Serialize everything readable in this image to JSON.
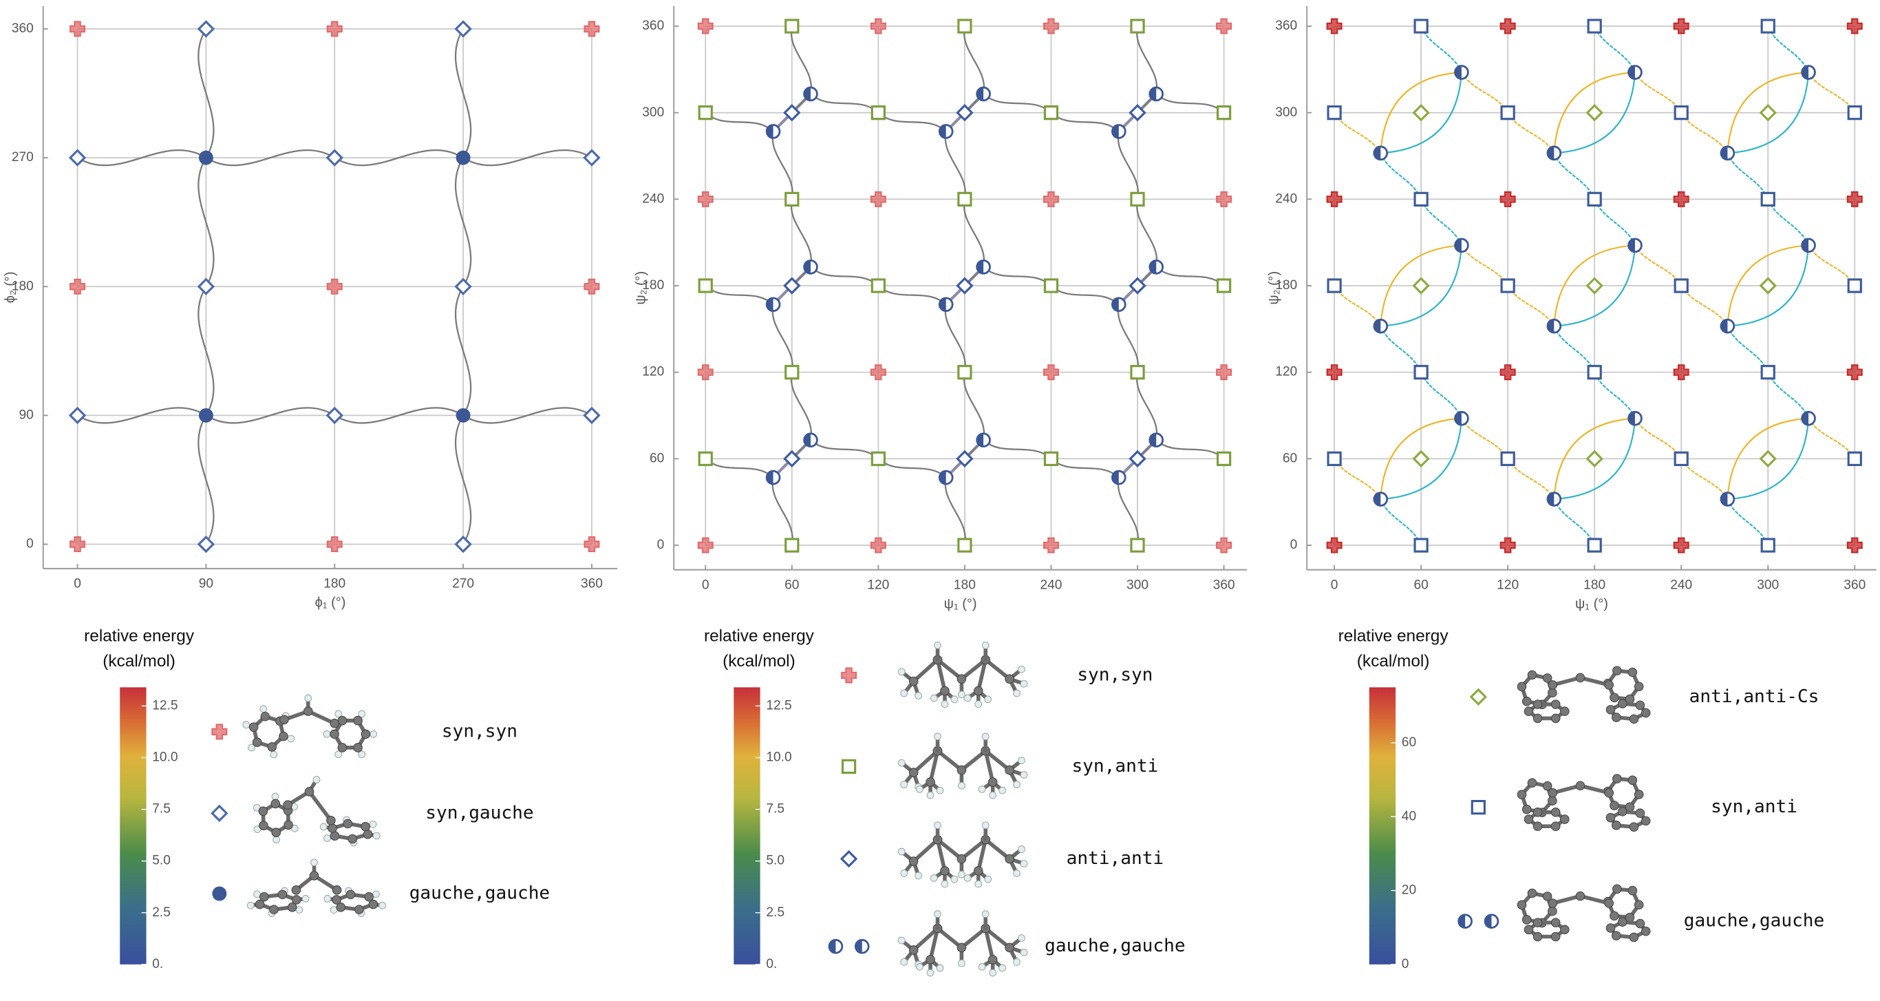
{
  "chart_data": [
    {
      "type": "scatter",
      "x_label": "ϕ₁ (°)",
      "y_label": "ϕ₂ (°)",
      "xlim": [
        -24,
        378
      ],
      "ylim": [
        -17,
        376
      ],
      "xticks": [
        0,
        90,
        180,
        270,
        360
      ],
      "yticks": [
        0,
        90,
        180,
        270,
        360
      ],
      "grid": true,
      "series": [
        {
          "name": "syn,syn",
          "color": "#e06a6a",
          "marker": "cross",
          "x": [
            0,
            180,
            360,
            0,
            180,
            360,
            0,
            180,
            360
          ],
          "y": [
            0,
            0,
            0,
            180,
            180,
            180,
            360,
            360,
            360
          ]
        },
        {
          "name": "syn,gauche",
          "color": "#4a69ad",
          "marker": "diamond",
          "x": [
            90,
            270,
            0,
            180,
            360,
            90,
            270,
            0,
            180,
            360,
            90,
            270
          ],
          "y": [
            0,
            0,
            90,
            90,
            90,
            180,
            180,
            270,
            270,
            270,
            360,
            360
          ]
        },
        {
          "name": "gauche,gauche",
          "color": "#3b5796",
          "marker": "circle",
          "x": [
            90,
            270,
            90,
            270
          ],
          "y": [
            90,
            90,
            270,
            270
          ]
        }
      ],
      "colorbar": {
        "title": [
          "relative energy",
          "(kcal/mol)"
        ],
        "lim": [
          0,
          13.4
        ],
        "ticks": [
          {
            "value": 0,
            "label": "0."
          },
          2.5,
          {
            "value": 5,
            "label": "5.0"
          },
          7.5,
          {
            "value": 10,
            "label": "10.0"
          },
          12.5
        ]
      }
    },
    {
      "type": "scatter",
      "x_label": "ψ₁ (°)",
      "y_label": "ψ₂ (°)",
      "xlim": [
        -22,
        376
      ],
      "ylim": [
        -17,
        374
      ],
      "xticks": [
        0,
        60,
        120,
        180,
        240,
        300,
        360
      ],
      "yticks": [
        0,
        60,
        120,
        180,
        240,
        300,
        360
      ],
      "grid": true,
      "series": [
        {
          "name": "syn,syn",
          "color": "#e06a6a",
          "marker": "cross",
          "x": [
            0,
            120,
            240,
            360,
            0,
            120,
            240,
            360,
            0,
            120,
            240,
            360,
            0,
            120,
            240,
            360
          ],
          "y": [
            0,
            0,
            0,
            0,
            120,
            120,
            120,
            120,
            240,
            240,
            240,
            240,
            360,
            360,
            360,
            360
          ]
        },
        {
          "name": "syn,anti",
          "color": "#7a9e3a",
          "marker": "square",
          "x": [
            60,
            180,
            300,
            60,
            180,
            300,
            60,
            180,
            300,
            60,
            180,
            300,
            0,
            120,
            240,
            360,
            0,
            120,
            240,
            360,
            0,
            120,
            240,
            360
          ],
          "y": [
            0,
            0,
            0,
            120,
            120,
            120,
            240,
            240,
            240,
            360,
            360,
            360,
            60,
            60,
            60,
            60,
            180,
            180,
            180,
            180,
            300,
            300,
            300,
            300
          ]
        },
        {
          "name": "anti,anti",
          "color": "#3b5ba5",
          "marker": "diamond",
          "x": [
            60,
            180,
            300,
            60,
            180,
            300,
            60,
            180,
            300
          ],
          "y": [
            60,
            60,
            60,
            180,
            180,
            180,
            300,
            300,
            300
          ]
        },
        {
          "name": "gauche,gauche",
          "color": "#3b5796",
          "marker": "half",
          "x": [
            47,
            73,
            167,
            193,
            287,
            313,
            47,
            73,
            167,
            193,
            287,
            313,
            47,
            73,
            167,
            193,
            287,
            313
          ],
          "y": [
            47,
            73,
            47,
            73,
            47,
            73,
            167,
            193,
            167,
            193,
            167,
            193,
            287,
            313,
            287,
            313,
            287,
            313
          ]
        }
      ],
      "colorbar": {
        "title": [
          "relative energy",
          "(kcal/mol)"
        ],
        "lim": [
          0,
          13.4
        ],
        "ticks": [
          {
            "value": 0,
            "label": "0."
          },
          2.5,
          {
            "value": 5,
            "label": "5.0"
          },
          7.5,
          {
            "value": 10,
            "label": "10.0"
          },
          12.5
        ]
      }
    },
    {
      "type": "scatter",
      "x_label": "ψ₁ (°)",
      "y_label": "ψ₂ (°)",
      "xlim": [
        -19,
        375
      ],
      "ylim": [
        -17,
        374
      ],
      "xticks": [
        0,
        60,
        120,
        180,
        240,
        300,
        360
      ],
      "yticks": [
        0,
        60,
        120,
        180,
        240,
        300,
        360
      ],
      "grid": true,
      "series": [
        {
          "color": "#c62828",
          "marker": "cross",
          "x": [
            0,
            120,
            240,
            360,
            0,
            120,
            240,
            360,
            0,
            120,
            240,
            360,
            0,
            120,
            240,
            360
          ],
          "y": [
            0,
            0,
            0,
            0,
            120,
            120,
            120,
            120,
            240,
            240,
            240,
            240,
            360,
            360,
            360,
            360
          ]
        },
        {
          "name": "anti,anti-Cs",
          "color": "#8aab3e",
          "marker": "diamond",
          "x": [
            60,
            180,
            300,
            60,
            180,
            300,
            60,
            180,
            300
          ],
          "y": [
            60,
            60,
            60,
            180,
            180,
            180,
            300,
            300,
            300
          ]
        },
        {
          "name": "syn,anti",
          "color": "#3c5b9a",
          "marker": "square",
          "x": [
            60,
            180,
            300,
            60,
            180,
            300,
            60,
            180,
            300,
            60,
            180,
            300,
            0,
            120,
            240,
            360,
            0,
            120,
            240,
            360,
            0,
            120,
            240,
            360
          ],
          "y": [
            0,
            0,
            0,
            120,
            120,
            120,
            240,
            240,
            240,
            360,
            360,
            360,
            60,
            60,
            60,
            60,
            180,
            180,
            180,
            180,
            300,
            300,
            300,
            300
          ]
        },
        {
          "name": "gauche,gauche",
          "color": "#3b5796",
          "marker": "half",
          "x": [
            32,
            88,
            152,
            208,
            272,
            328,
            32,
            88,
            152,
            208,
            272,
            328,
            32,
            88,
            152,
            208,
            272,
            328
          ],
          "y": [
            32,
            88,
            32,
            88,
            32,
            88,
            152,
            208,
            152,
            208,
            152,
            208,
            272,
            328,
            272,
            328,
            272,
            328
          ]
        }
      ],
      "colorbar": {
        "title": [
          "relative energy",
          "(kcal/mol)"
        ],
        "lim": [
          0,
          75
        ],
        "ticks": [
          0,
          20,
          40,
          60
        ]
      }
    }
  ]
}
